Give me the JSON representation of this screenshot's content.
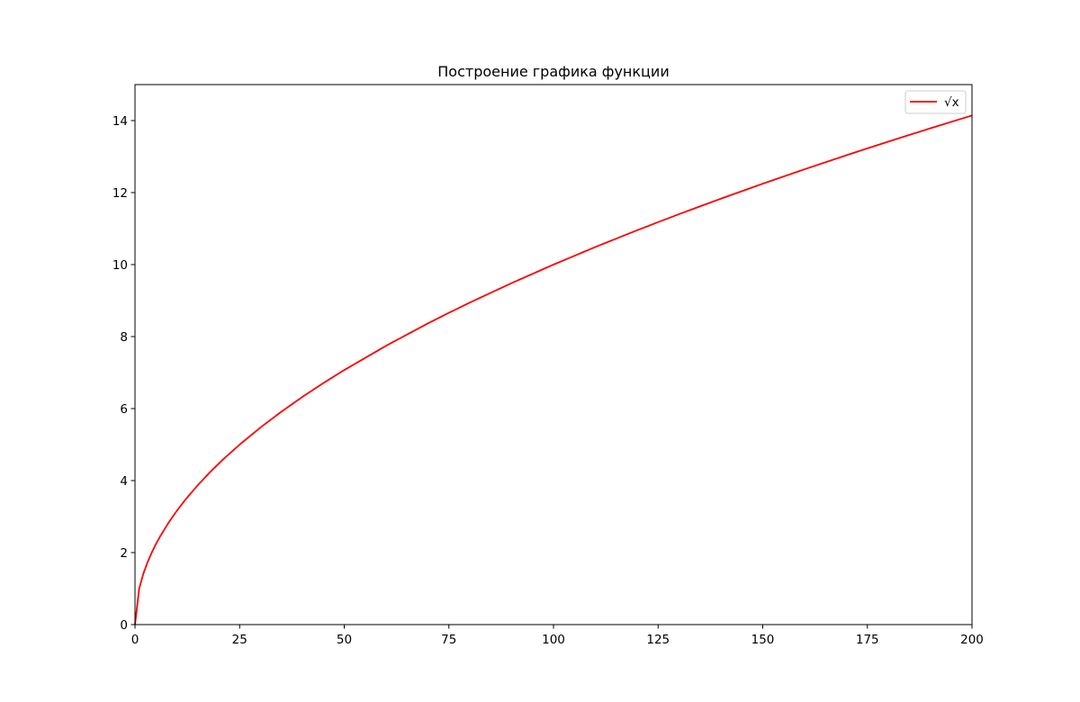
{
  "chart_data": {
    "type": "line",
    "title": "Построение графика функции",
    "xlabel": "",
    "ylabel": "",
    "xlim": [
      0,
      200
    ],
    "ylim": [
      0,
      15
    ],
    "xticks": [
      0,
      25,
      50,
      75,
      100,
      125,
      150,
      175,
      200
    ],
    "xtick_labels": [
      "0",
      "25",
      "50",
      "75",
      "100",
      "125",
      "150",
      "175",
      "200"
    ],
    "yticks": [
      0,
      2,
      4,
      6,
      8,
      10,
      12,
      14
    ],
    "ytick_labels": [
      "0",
      "2",
      "4",
      "6",
      "8",
      "10",
      "12",
      "14"
    ],
    "grid": false,
    "legend_position": "top-right",
    "series": [
      {
        "name": "√x",
        "color": "#ff0000",
        "x": [
          0,
          1,
          2,
          3,
          4,
          5,
          6,
          8,
          10,
          12,
          15,
          18,
          21,
          25,
          30,
          35,
          40,
          45,
          50,
          60,
          70,
          75,
          80,
          90,
          100,
          110,
          120,
          125,
          130,
          140,
          150,
          160,
          170,
          175,
          180,
          190,
          200
        ],
        "y": [
          0,
          1.0,
          1.414,
          1.732,
          2.0,
          2.236,
          2.449,
          2.828,
          3.162,
          3.464,
          3.873,
          4.243,
          4.583,
          5.0,
          5.477,
          5.916,
          6.325,
          6.708,
          7.071,
          7.746,
          8.367,
          8.66,
          8.944,
          9.487,
          10.0,
          10.488,
          10.954,
          11.18,
          11.402,
          11.832,
          12.247,
          12.649,
          13.038,
          13.229,
          13.416,
          13.784,
          14.142
        ]
      }
    ]
  }
}
